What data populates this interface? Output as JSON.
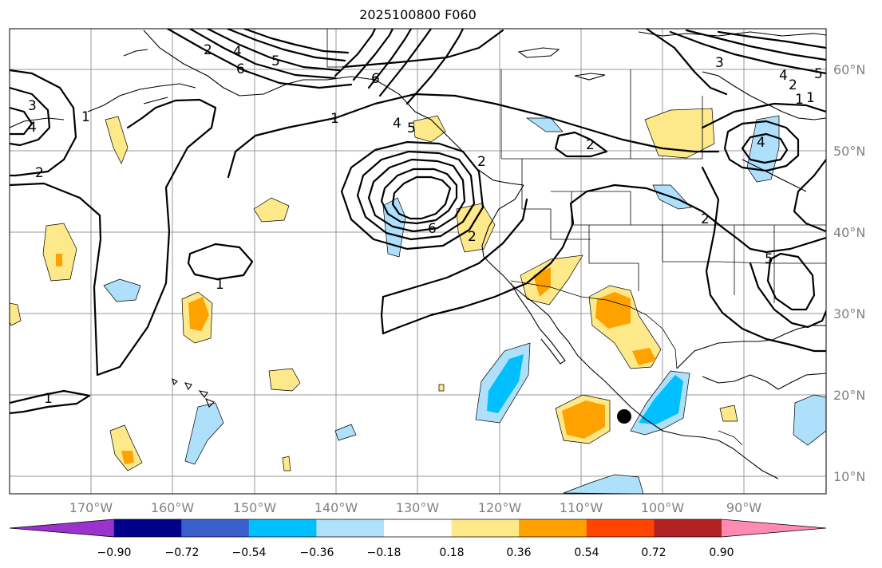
{
  "title": "2025100800 F060",
  "lat_labels": [
    "60°N",
    "50°N",
    "40°N",
    "30°N",
    "20°N",
    "10°N"
  ],
  "lon_labels": [
    "170°W",
    "160°W",
    "150°W",
    "140°W",
    "130°W",
    "120°W",
    "110°W",
    "100°W",
    "90°W"
  ],
  "colorbar": {
    "ticks": [
      "−0.90",
      "−0.72",
      "−0.54",
      "−0.36",
      "−0.18",
      "0.18",
      "0.36",
      "0.54",
      "0.72",
      "0.90"
    ],
    "colors": [
      "#9b32cc",
      "#00008b",
      "#3a5fcd",
      "#00bfff",
      "#afe1fb",
      "#ffffff",
      "#fde98a",
      "#ffa200",
      "#ff4500",
      "#b22222",
      "#ff8ab4"
    ]
  },
  "contour_labels": [
    "4",
    "3",
    "2",
    "1",
    "1",
    "1",
    "2",
    "4",
    "5",
    "6",
    "6",
    "4",
    "5",
    "2",
    "1",
    "2",
    "6",
    "1",
    "2",
    "1",
    "4",
    "2",
    "3",
    "5",
    "4",
    "2",
    "5"
  ],
  "marker": "storm-center"
}
